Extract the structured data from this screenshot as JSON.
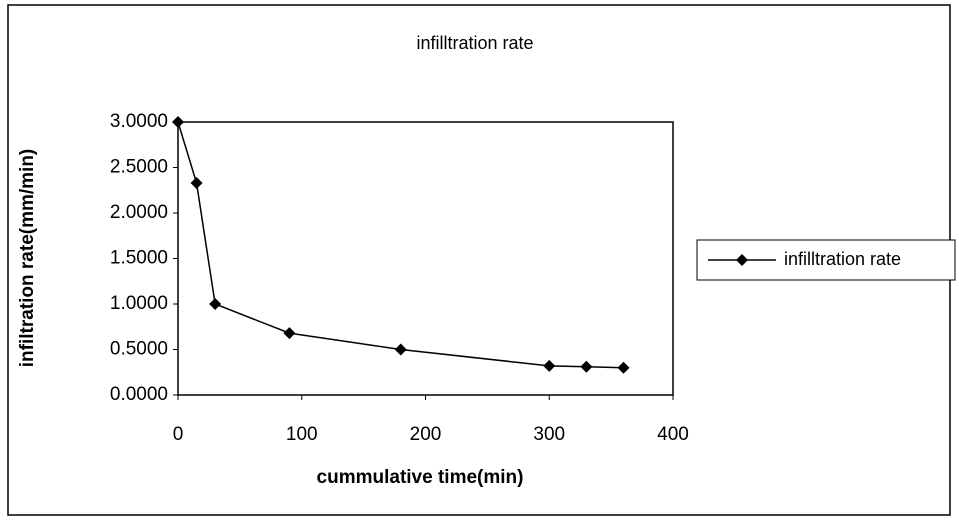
{
  "chart_data": {
    "type": "line",
    "title": "infilltration rate",
    "x_label": "cummulative time(min)",
    "y_label": "infiltration rate(mm/min)",
    "series": [
      {
        "name": "infilltration rate",
        "color": "#000000",
        "x": [
          0,
          15,
          30,
          90,
          180,
          300,
          330,
          360
        ],
        "values": [
          3.0,
          2.33,
          1.0,
          0.68,
          0.5,
          0.32,
          0.31,
          0.3
        ]
      }
    ],
    "xlim": [
      0,
      400
    ],
    "xticks": [
      0,
      100,
      200,
      300,
      400
    ],
    "ylim": [
      0,
      3
    ],
    "yticks": [
      {
        "value": 0,
        "label": "0.0000"
      },
      {
        "value": 0.5,
        "label": "0.5000"
      },
      {
        "value": 1,
        "label": "1.0000"
      },
      {
        "value": 1.5,
        "label": "1.5000"
      },
      {
        "value": 2,
        "label": "2.0000"
      },
      {
        "value": 2.5,
        "label": "2.5000"
      },
      {
        "value": 3,
        "label": "3.0000"
      }
    ],
    "legend": "right"
  }
}
